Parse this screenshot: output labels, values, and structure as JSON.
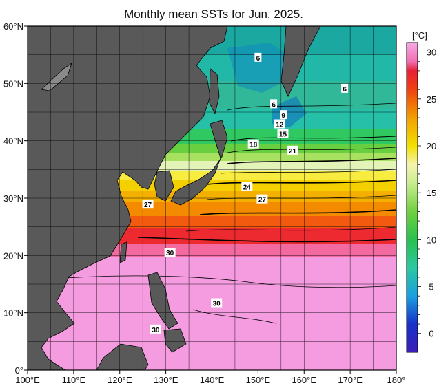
{
  "title": "Monthly mean SSTs for Jun. 2025.",
  "map": {
    "lon_range": [
      100,
      180
    ],
    "lat_range": [
      0,
      60
    ],
    "lon_ticks": [
      {
        "v": 100,
        "label": "100°E"
      },
      {
        "v": 110,
        "label": "110°E"
      },
      {
        "v": 120,
        "label": "120°E"
      },
      {
        "v": 130,
        "label": "130°E"
      },
      {
        "v": 140,
        "label": "140°E"
      },
      {
        "v": 150,
        "label": "150°E"
      },
      {
        "v": 160,
        "label": "160°E"
      },
      {
        "v": 170,
        "label": "170°E"
      },
      {
        "v": 180,
        "label": "180°"
      }
    ],
    "lat_ticks": [
      {
        "v": 0,
        "label": "0°"
      },
      {
        "v": 10,
        "label": "10°N"
      },
      {
        "v": 20,
        "label": "20°N"
      },
      {
        "v": 30,
        "label": "30°N"
      },
      {
        "v": 40,
        "label": "40°N"
      },
      {
        "v": 50,
        "label": "50°N"
      },
      {
        "v": 60,
        "label": "60°N"
      }
    ],
    "land_color": "#595959",
    "isotherm_labels": [
      {
        "text": "6",
        "lon": 150.0,
        "lat": 54.5
      },
      {
        "text": "6",
        "lon": 168.8,
        "lat": 49.1
      },
      {
        "text": "6",
        "lon": 153.4,
        "lat": 46.4
      },
      {
        "text": "9",
        "lon": 155.5,
        "lat": 44.5
      },
      {
        "text": "12",
        "lon": 154.7,
        "lat": 42.9
      },
      {
        "text": "15",
        "lon": 155.4,
        "lat": 41.2
      },
      {
        "text": "18",
        "lon": 149.0,
        "lat": 39.4
      },
      {
        "text": "21",
        "lon": 157.5,
        "lat": 38.3
      },
      {
        "text": "24",
        "lon": 147.6,
        "lat": 32.0
      },
      {
        "text": "27",
        "lon": 150.9,
        "lat": 29.8
      },
      {
        "text": "27",
        "lon": 126.1,
        "lat": 28.9
      },
      {
        "text": "30",
        "lon": 130.9,
        "lat": 20.5
      },
      {
        "text": "30",
        "lon": 141.0,
        "lat": 11.7
      },
      {
        "text": "30",
        "lon": 127.8,
        "lat": 7.1
      }
    ]
  },
  "colorbar": {
    "unit": "[°C]",
    "range": [
      -2,
      31
    ],
    "ticks": [
      {
        "v": 0,
        "label": "0"
      },
      {
        "v": 5,
        "label": "5"
      },
      {
        "v": 10,
        "label": "10"
      },
      {
        "v": 15,
        "label": "15"
      },
      {
        "v": 20,
        "label": "20"
      },
      {
        "v": 25,
        "label": "25"
      },
      {
        "v": 30,
        "label": "30"
      }
    ],
    "colors": [
      {
        "v": -2,
        "c": "#3a1fb8"
      },
      {
        "v": 1,
        "c": "#1830c8"
      },
      {
        "v": 4,
        "c": "#1aa0e0"
      },
      {
        "v": 7,
        "c": "#2cc8a0"
      },
      {
        "v": 10,
        "c": "#28c050"
      },
      {
        "v": 13,
        "c": "#70d040"
      },
      {
        "v": 16,
        "c": "#c8ec90"
      },
      {
        "v": 18,
        "c": "#f4f4b0"
      },
      {
        "v": 20,
        "c": "#f2e000"
      },
      {
        "v": 23,
        "c": "#f2a000"
      },
      {
        "v": 26,
        "c": "#f04010"
      },
      {
        "v": 28,
        "c": "#e8203a"
      },
      {
        "v": 29,
        "c": "#f070b0"
      },
      {
        "v": 31,
        "c": "#f8a8e8"
      }
    ]
  }
}
